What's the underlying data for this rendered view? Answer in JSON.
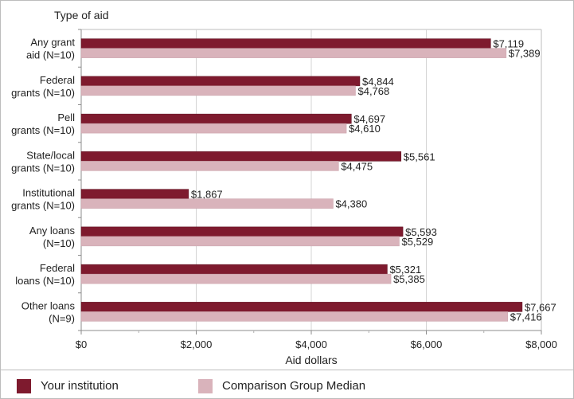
{
  "chart_data": {
    "type": "bar",
    "orientation": "horizontal",
    "title": "",
    "category_axis_title": "Type of aid",
    "xlabel": "Aid dollars",
    "ylabel": "Type of aid",
    "xlim": [
      0,
      8000
    ],
    "ticks": [
      0,
      2000,
      4000,
      6000,
      8000
    ],
    "tick_labels": [
      "$0",
      "$2,000",
      "$4,000",
      "$6,000",
      "$8,000"
    ],
    "grid": true,
    "legend_position": "bottom",
    "categories": [
      [
        "Any grant",
        "aid (N=10)"
      ],
      [
        "Federal",
        "grants (N=10)"
      ],
      [
        "Pell",
        "grants (N=10)"
      ],
      [
        "State/local",
        "grants (N=10)"
      ],
      [
        "Institutional",
        "grants (N=10)"
      ],
      [
        "Any loans",
        "(N=10)"
      ],
      [
        "Federal",
        "loans (N=10)"
      ],
      [
        "Other loans",
        "(N=9)"
      ]
    ],
    "series": [
      {
        "name": "Your institution",
        "color": "#7e1a2e",
        "values": [
          7119,
          4844,
          4697,
          5561,
          1867,
          5593,
          5321,
          7667
        ],
        "labels": [
          "$7,119",
          "$4,844",
          "$4,697",
          "$5,561",
          "$1,867",
          "$5,593",
          "$5,321",
          "$7,667"
        ]
      },
      {
        "name": "Comparison Group Median",
        "color": "#d9b3bb",
        "values": [
          7389,
          4768,
          4610,
          4475,
          4380,
          5529,
          5385,
          7416
        ],
        "labels": [
          "$7,389",
          "$4,768",
          "$4,610",
          "$4,475",
          "$4,380",
          "$5,529",
          "$5,385",
          "$7,416"
        ]
      }
    ]
  }
}
